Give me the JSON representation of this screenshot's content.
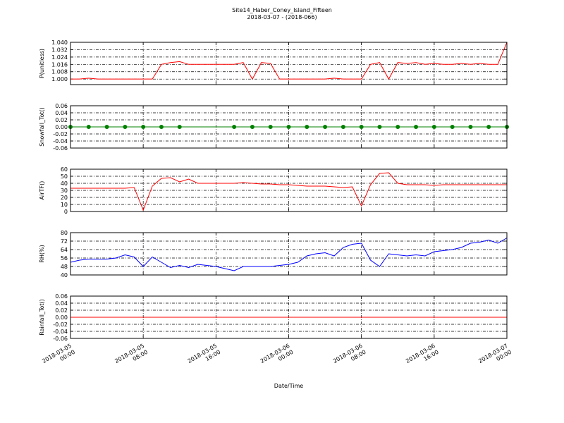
{
  "chart_data": [
    {
      "type": "line",
      "title": "Site14_Haber_Coney_Island_Fifteen",
      "subtitle": "2018-03-07 - (2018-066)",
      "ylabel": "P(unitless)",
      "color": "#ff0000",
      "grid": true,
      "x": [
        "2018-03-05 00:00",
        "2018-03-05 01:00",
        "2018-03-05 02:00",
        "2018-03-05 03:00",
        "2018-03-05 04:00",
        "2018-03-05 05:00",
        "2018-03-05 06:00",
        "2018-03-05 07:00",
        "2018-03-05 08:00",
        "2018-03-05 09:00",
        "2018-03-05 10:00",
        "2018-03-05 11:00",
        "2018-03-05 12:00",
        "2018-03-05 13:00",
        "2018-03-05 14:00",
        "2018-03-05 15:00",
        "2018-03-05 16:00",
        "2018-03-05 17:00",
        "2018-03-05 18:00",
        "2018-03-05 19:00",
        "2018-03-05 20:00",
        "2018-03-05 21:00",
        "2018-03-05 22:00",
        "2018-03-05 23:00",
        "2018-03-06 00:00",
        "2018-03-06 01:00",
        "2018-03-06 02:00",
        "2018-03-06 03:00",
        "2018-03-06 04:00",
        "2018-03-06 05:00",
        "2018-03-06 06:00",
        "2018-03-06 07:00",
        "2018-03-06 08:00",
        "2018-03-06 09:00",
        "2018-03-06 10:00",
        "2018-03-06 11:00",
        "2018-03-06 12:00",
        "2018-03-06 13:00",
        "2018-03-06 14:00",
        "2018-03-06 15:00",
        "2018-03-06 16:00",
        "2018-03-06 17:00",
        "2018-03-06 18:00",
        "2018-03-06 19:00",
        "2018-03-06 20:00",
        "2018-03-06 21:00",
        "2018-03-06 22:00",
        "2018-03-06 23:00",
        "2018-03-07 00:00"
      ],
      "values": [
        1.0,
        1.0,
        1.001,
        1.0,
        1.0,
        1.0,
        1.0,
        1.0,
        1.0,
        1.0,
        1.016,
        1.018,
        1.019,
        1.016,
        1.016,
        1.016,
        1.016,
        1.016,
        1.016,
        1.018,
        1.0,
        1.018,
        1.017,
        1.0,
        1.0,
        1.0,
        1.0,
        1.0,
        1.0,
        1.001,
        1.0,
        1.0,
        1.0,
        1.016,
        1.018,
        1.0,
        1.018,
        1.017,
        1.018,
        1.016,
        1.017,
        1.016,
        1.016,
        1.017,
        1.016,
        1.017,
        1.016,
        1.016,
        1.04
      ],
      "xlim": [
        "2018-03-05 00:00",
        "2018-03-07 00:00"
      ],
      "xticks": [
        "2018-03-05 00:00",
        "2018-03-05 08:00",
        "2018-03-05 16:00",
        "2018-03-06 00:00",
        "2018-03-06 08:00",
        "2018-03-06 16:00",
        "2018-03-07 00:00"
      ],
      "ylim": [
        0.994,
        1.04
      ],
      "yticks": [
        {
          "value": 1.0,
          "label": "1.000"
        },
        {
          "value": 1.008,
          "label": "1.008"
        },
        {
          "value": 1.016,
          "label": "1.016"
        },
        {
          "value": 1.024,
          "label": "1.024"
        },
        {
          "value": 1.032,
          "label": "1.032"
        },
        {
          "value": 1.04,
          "label": "1.040"
        }
      ]
    },
    {
      "type": "line",
      "ylabel": "Snowfall_Tot()",
      "color": "#008000",
      "marker": "o",
      "grid": true,
      "x": [
        "2018-03-05 00:00",
        "2018-03-05 02:00",
        "2018-03-05 04:00",
        "2018-03-05 06:00",
        "2018-03-05 08:00",
        "2018-03-05 10:00",
        "2018-03-05 12:00",
        "2018-03-05 18:00",
        "2018-03-05 20:00",
        "2018-03-05 22:00",
        "2018-03-06 00:00",
        "2018-03-06 02:00",
        "2018-03-06 04:00",
        "2018-03-06 06:00",
        "2018-03-06 08:00",
        "2018-03-06 10:00",
        "2018-03-06 12:00",
        "2018-03-06 14:00",
        "2018-03-06 16:00",
        "2018-03-06 18:00",
        "2018-03-06 20:00",
        "2018-03-06 22:00",
        "2018-03-07 00:00"
      ],
      "values": [
        0,
        0,
        0,
        0,
        0,
        0,
        0,
        0,
        0,
        0,
        0,
        0,
        0,
        0,
        0,
        0,
        0,
        0,
        0,
        0,
        0,
        0,
        0
      ],
      "xlim": [
        "2018-03-05 00:00",
        "2018-03-07 00:00"
      ],
      "xticks": [
        "2018-03-05 00:00",
        "2018-03-05 08:00",
        "2018-03-05 16:00",
        "2018-03-06 00:00",
        "2018-03-06 08:00",
        "2018-03-06 16:00",
        "2018-03-07 00:00"
      ],
      "ylim": [
        -0.06,
        0.06
      ],
      "yticks": [
        {
          "value": -0.06,
          "label": "-0.06"
        },
        {
          "value": -0.04,
          "label": "-0.04"
        },
        {
          "value": -0.02,
          "label": "-0.02"
        },
        {
          "value": 0,
          "label": "0.00"
        },
        {
          "value": 0.02,
          "label": "0.02"
        },
        {
          "value": 0.04,
          "label": "0.04"
        },
        {
          "value": 0.06,
          "label": "0.06"
        }
      ]
    },
    {
      "type": "line",
      "ylabel": "AirTF()",
      "color": "#ff0000",
      "grid": true,
      "x": [
        "2018-03-05 00:00",
        "2018-03-05 01:00",
        "2018-03-05 02:00",
        "2018-03-05 03:00",
        "2018-03-05 04:00",
        "2018-03-05 05:00",
        "2018-03-05 06:00",
        "2018-03-05 07:00",
        "2018-03-05 08:00",
        "2018-03-05 09:00",
        "2018-03-05 10:00",
        "2018-03-05 11:00",
        "2018-03-05 12:00",
        "2018-03-05 13:00",
        "2018-03-05 14:00",
        "2018-03-05 15:00",
        "2018-03-05 16:00",
        "2018-03-05 17:00",
        "2018-03-05 18:00",
        "2018-03-05 19:00",
        "2018-03-05 20:00",
        "2018-03-05 21:00",
        "2018-03-05 22:00",
        "2018-03-05 23:00",
        "2018-03-06 00:00",
        "2018-03-06 01:00",
        "2018-03-06 02:00",
        "2018-03-06 03:00",
        "2018-03-06 04:00",
        "2018-03-06 05:00",
        "2018-03-06 06:00",
        "2018-03-06 07:00",
        "2018-03-06 08:00",
        "2018-03-06 09:00",
        "2018-03-06 10:00",
        "2018-03-06 11:00",
        "2018-03-06 12:00",
        "2018-03-06 13:00",
        "2018-03-06 14:00",
        "2018-03-06 15:00",
        "2018-03-06 16:00",
        "2018-03-06 17:00",
        "2018-03-06 18:00",
        "2018-03-06 19:00",
        "2018-03-06 20:00",
        "2018-03-06 21:00",
        "2018-03-06 22:00",
        "2018-03-06 23:00",
        "2018-03-07 00:00"
      ],
      "values": [
        33,
        33,
        33,
        33,
        33,
        33,
        33,
        34,
        2,
        36,
        47,
        48,
        42,
        46,
        40,
        40,
        40,
        40,
        40,
        41,
        40,
        39,
        39,
        38,
        38,
        37,
        36,
        36,
        36,
        35,
        34,
        35,
        8,
        38,
        54,
        55,
        40,
        38,
        38,
        38,
        37,
        38,
        38,
        38,
        38,
        38,
        38,
        38,
        38
      ],
      "xlim": [
        "2018-03-05 00:00",
        "2018-03-07 00:00"
      ],
      "xticks": [
        "2018-03-05 00:00",
        "2018-03-05 08:00",
        "2018-03-05 16:00",
        "2018-03-06 00:00",
        "2018-03-06 08:00",
        "2018-03-06 16:00",
        "2018-03-07 00:00"
      ],
      "ylim": [
        0,
        60
      ],
      "yticks": [
        0,
        10,
        20,
        30,
        40,
        50,
        60
      ]
    },
    {
      "type": "line",
      "ylabel": "RH(%)",
      "color": "#0000ff",
      "grid": true,
      "x": [
        "2018-03-05 00:00",
        "2018-03-05 01:00",
        "2018-03-05 02:00",
        "2018-03-05 03:00",
        "2018-03-05 04:00",
        "2018-03-05 05:00",
        "2018-03-05 06:00",
        "2018-03-05 07:00",
        "2018-03-05 08:00",
        "2018-03-05 09:00",
        "2018-03-05 10:00",
        "2018-03-05 11:00",
        "2018-03-05 12:00",
        "2018-03-05 13:00",
        "2018-03-05 14:00",
        "2018-03-05 15:00",
        "2018-03-05 16:00",
        "2018-03-05 17:00",
        "2018-03-05 18:00",
        "2018-03-05 19:00",
        "2018-03-05 20:00",
        "2018-03-05 21:00",
        "2018-03-05 22:00",
        "2018-03-05 23:00",
        "2018-03-06 00:00",
        "2018-03-06 01:00",
        "2018-03-06 02:00",
        "2018-03-06 03:00",
        "2018-03-06 04:00",
        "2018-03-06 05:00",
        "2018-03-06 06:00",
        "2018-03-06 07:00",
        "2018-03-06 08:00",
        "2018-03-06 09:00",
        "2018-03-06 10:00",
        "2018-03-06 11:00",
        "2018-03-06 12:00",
        "2018-03-06 13:00",
        "2018-03-06 14:00",
        "2018-03-06 15:00",
        "2018-03-06 16:00",
        "2018-03-06 17:00",
        "2018-03-06 18:00",
        "2018-03-06 19:00",
        "2018-03-06 20:00",
        "2018-03-06 21:00",
        "2018-03-06 22:00",
        "2018-03-06 23:00",
        "2018-03-07 00:00"
      ],
      "values": [
        52,
        54,
        55,
        55,
        55,
        56,
        59,
        57,
        48,
        57,
        52,
        47,
        49,
        47,
        50,
        49,
        48,
        46,
        44,
        48,
        48,
        48,
        48,
        49,
        50,
        52,
        58,
        60,
        61,
        58,
        66,
        69,
        70,
        54,
        48,
        60,
        59,
        58,
        59,
        58,
        62,
        63,
        64,
        66,
        70,
        71,
        73,
        70,
        75
      ],
      "xlim": [
        "2018-03-05 00:00",
        "2018-03-07 00:00"
      ],
      "xticks": [
        "2018-03-05 00:00",
        "2018-03-05 08:00",
        "2018-03-05 16:00",
        "2018-03-06 00:00",
        "2018-03-06 08:00",
        "2018-03-06 16:00",
        "2018-03-07 00:00"
      ],
      "ylim": [
        40,
        80
      ],
      "yticks": [
        40,
        48,
        56,
        64,
        72,
        80
      ]
    },
    {
      "type": "line",
      "ylabel": "Rainfall_Tot()",
      "xlabel": "Date/Time",
      "color": "#ff0000",
      "grid": true,
      "x": [
        "2018-03-05 00:00",
        "2018-03-05 02:00",
        "2018-03-05 04:00",
        "2018-03-05 06:00",
        "2018-03-05 08:00",
        "2018-03-05 10:00",
        "2018-03-05 12:00",
        "2018-03-05 14:00",
        "2018-03-05 16:00",
        "2018-03-05 18:00",
        "2018-03-05 20:00",
        "2018-03-05 22:00",
        "2018-03-06 00:00",
        "2018-03-06 02:00",
        "2018-03-06 04:00",
        "2018-03-06 06:00",
        "2018-03-06 08:00",
        "2018-03-06 10:00",
        "2018-03-06 12:00",
        "2018-03-06 14:00",
        "2018-03-06 16:00",
        "2018-03-06 18:00",
        "2018-03-06 20:00",
        "2018-03-06 22:00",
        "2018-03-07 00:00"
      ],
      "values": [
        0,
        0,
        0,
        0,
        0,
        0,
        0,
        0,
        0,
        0,
        0,
        0,
        0,
        0,
        0,
        0,
        0,
        0,
        0,
        0,
        0,
        0,
        0,
        0,
        0
      ],
      "xlim": [
        "2018-03-05 00:00",
        "2018-03-07 00:00"
      ],
      "xticks": [
        "2018-03-05 00:00",
        "2018-03-05 08:00",
        "2018-03-05 16:00",
        "2018-03-06 00:00",
        "2018-03-06 08:00",
        "2018-03-06 16:00",
        "2018-03-07 00:00"
      ],
      "ylim": [
        -0.06,
        0.06
      ],
      "yticks": [
        {
          "value": -0.06,
          "label": "-0.06"
        },
        {
          "value": -0.04,
          "label": "-0.04"
        },
        {
          "value": -0.02,
          "label": "-0.02"
        },
        {
          "value": 0,
          "label": "0.00"
        },
        {
          "value": 0.02,
          "label": "0.02"
        },
        {
          "value": 0.04,
          "label": "0.04"
        },
        {
          "value": 0.06,
          "label": "0.06"
        }
      ]
    }
  ]
}
